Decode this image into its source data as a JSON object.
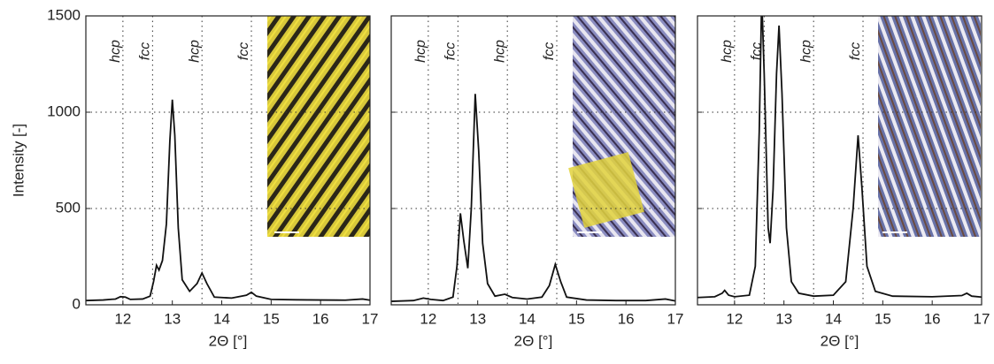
{
  "chart_data": [
    {
      "type": "line",
      "x_label": "2Θ [°]",
      "y_label": "Intensity [-]",
      "xlim": [
        11.25,
        17
      ],
      "xticks": [
        12,
        13,
        14,
        15,
        16,
        17
      ],
      "ylim": [
        0,
        1500
      ],
      "yticks": [
        0,
        500,
        1000,
        1500
      ],
      "annotations": [
        {
          "x": 12,
          "text": "hcp"
        },
        {
          "x": 12.6,
          "text": "fcc"
        },
        {
          "x": 13.6,
          "text": "hcp"
        },
        {
          "x": 14.6,
          "text": "fcc"
        }
      ],
      "series": [
        {
          "color": "#111111",
          "x": [
            11.25,
            11.6,
            11.85,
            11.95,
            12.05,
            12.15,
            12.4,
            12.55,
            12.62,
            12.68,
            12.73,
            12.8,
            12.88,
            12.95,
            13.0,
            13.05,
            13.12,
            13.2,
            13.35,
            13.5,
            13.6,
            13.7,
            13.85,
            14.2,
            14.5,
            14.6,
            14.7,
            15.0,
            15.5,
            16.0,
            16.5,
            16.85,
            17.0
          ],
          "values": [
            22,
            25,
            30,
            42,
            40,
            28,
            30,
            45,
            120,
            205,
            180,
            230,
            420,
            850,
            1065,
            880,
            400,
            130,
            70,
            110,
            165,
            110,
            40,
            35,
            50,
            65,
            45,
            28,
            26,
            25,
            24,
            30,
            24
          ]
        }
      ]
    },
    {
      "type": "line",
      "x_label": "2Θ [°]",
      "xlim": [
        11.25,
        17
      ],
      "xticks": [
        12,
        13,
        14,
        15,
        16,
        17
      ],
      "annotations": [
        {
          "x": 12,
          "text": "hcp"
        },
        {
          "x": 12.6,
          "text": "fcc"
        },
        {
          "x": 13.6,
          "text": "hcp"
        },
        {
          "x": 14.6,
          "text": "fcc"
        }
      ],
      "series": [
        {
          "color": "#111111",
          "x": [
            11.25,
            11.7,
            11.9,
            12.05,
            12.3,
            12.5,
            12.58,
            12.65,
            12.72,
            12.8,
            12.87,
            12.95,
            13.02,
            13.1,
            13.2,
            13.35,
            13.55,
            13.7,
            14.0,
            14.3,
            14.45,
            14.57,
            14.68,
            14.8,
            15.2,
            15.8,
            16.4,
            16.8,
            17.0
          ],
          "values": [
            18,
            22,
            35,
            28,
            22,
            40,
            200,
            475,
            330,
            190,
            500,
            1095,
            800,
            320,
            110,
            45,
            55,
            38,
            30,
            40,
            100,
            210,
            120,
            40,
            25,
            22,
            22,
            30,
            20
          ]
        }
      ]
    },
    {
      "type": "line",
      "x_label": "2Θ [°]",
      "xlim": [
        11.25,
        17
      ],
      "xticks": [
        12,
        13,
        14,
        15,
        16,
        17
      ],
      "annotations": [
        {
          "x": 12,
          "text": "hcp"
        },
        {
          "x": 12.6,
          "text": "fcc"
        },
        {
          "x": 13.6,
          "text": "hcp"
        },
        {
          "x": 14.6,
          "text": "fcc"
        }
      ],
      "series": [
        {
          "color": "#111111",
          "x": [
            11.25,
            11.6,
            11.75,
            11.8,
            11.88,
            12.0,
            12.3,
            12.42,
            12.5,
            12.55,
            12.6,
            12.68,
            12.72,
            12.78,
            12.85,
            12.9,
            12.96,
            13.05,
            13.15,
            13.3,
            13.6,
            14.0,
            14.25,
            14.4,
            14.5,
            14.58,
            14.68,
            14.85,
            15.2,
            16.0,
            16.6,
            16.7,
            16.8,
            17.0
          ],
          "values": [
            38,
            42,
            60,
            75,
            50,
            42,
            50,
            200,
            900,
            1600,
            1200,
            400,
            320,
            600,
            1200,
            1450,
            1100,
            400,
            120,
            60,
            45,
            50,
            120,
            500,
            880,
            600,
            200,
            70,
            45,
            42,
            48,
            60,
            45,
            40
          ]
        }
      ]
    }
  ]
}
